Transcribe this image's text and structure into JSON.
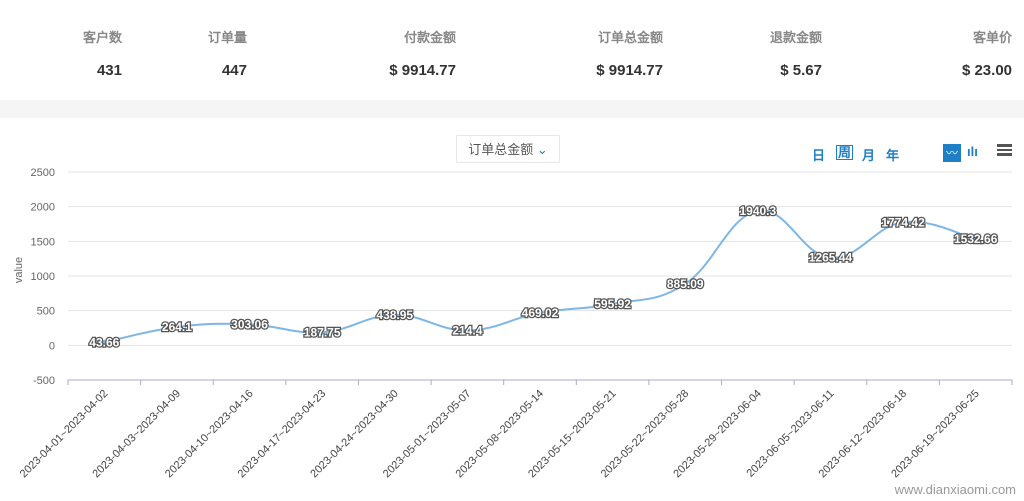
{
  "stats": [
    {
      "label": "客户数",
      "value": "431"
    },
    {
      "label": "订单量",
      "value": "447"
    },
    {
      "label": "付款金额",
      "value": "$ 9914.77"
    },
    {
      "label": "订单总金额",
      "value": "$ 9914.77"
    },
    {
      "label": "退款金额",
      "value": "$ 5.67"
    },
    {
      "label": "客单价",
      "value": "$ 23.00"
    }
  ],
  "toolbar": {
    "metric_select": "订单总金额",
    "periods": [
      "日",
      "周",
      "月",
      "年"
    ],
    "line_icon": "line-chart-icon",
    "bar_icon": "bar-chart-icon",
    "menu_icon": "menu-icon",
    "accent": "#1e7fc6"
  },
  "watermark": "www.dianxiaomi.com",
  "chart_data": {
    "type": "line",
    "ylabel": "value",
    "ylim": [
      -500,
      2500
    ],
    "yticks": [
      -500,
      0,
      500,
      1000,
      1500,
      2000,
      2500
    ],
    "grid": true,
    "smooth": true,
    "line_color": "#7eb6e6",
    "categories": [
      "2023-04-01~2023-04-02",
      "2023-04-03~2023-04-09",
      "2023-04-10~2023-04-16",
      "2023-04-17~2023-04-23",
      "2023-04-24~2023-04-30",
      "2023-05-01~2023-05-07",
      "2023-05-08~2023-05-14",
      "2023-05-15~2023-05-21",
      "2023-05-22~2023-05-28",
      "2023-05-29~2023-06-04",
      "2023-06-05~2023-06-11",
      "2023-06-12~2023-06-18",
      "2023-06-19~2023-06-25"
    ],
    "values": [
      43.66,
      264.1,
      303.06,
      187.75,
      438.95,
      214.4,
      469.02,
      595.92,
      885.09,
      1940.3,
      1265.44,
      1774.42,
      1532.66
    ]
  }
}
